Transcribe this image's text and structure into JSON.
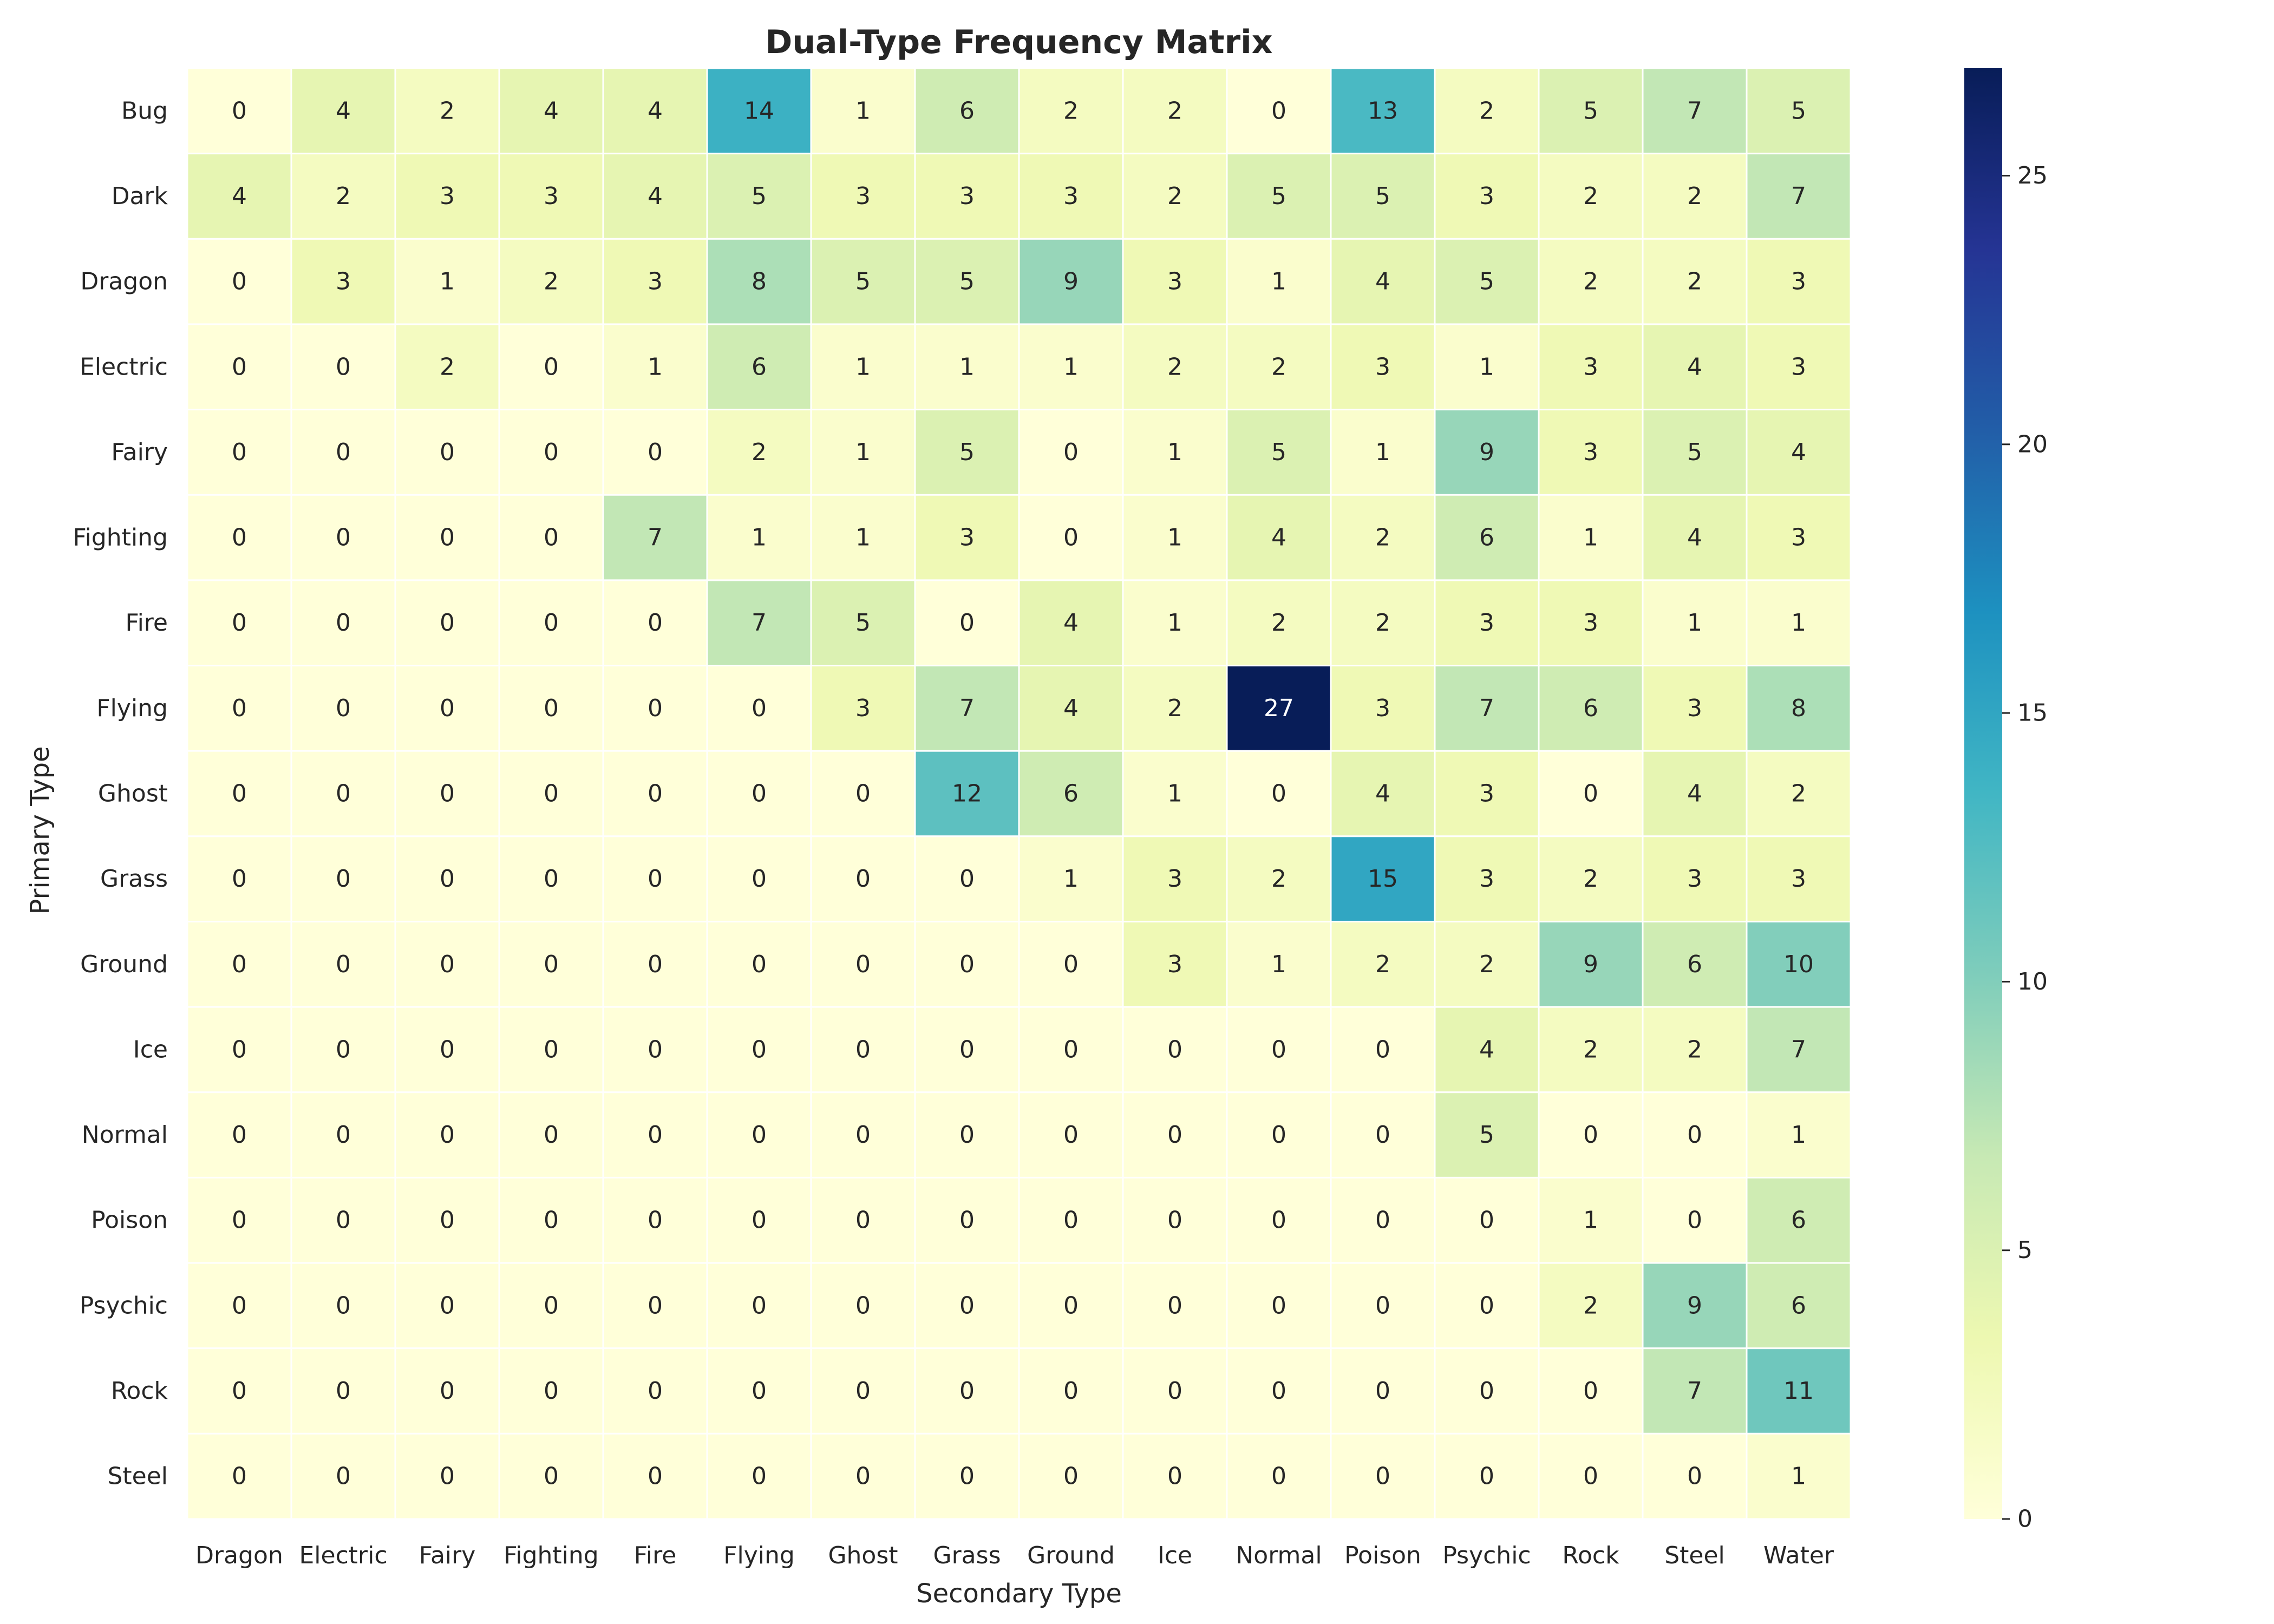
{
  "chart_data": {
    "type": "heatmap",
    "title": "Dual-Type Frequency Matrix",
    "xlabel": "Secondary Type",
    "ylabel": "Primary Type",
    "x_categories": [
      "Dragon",
      "Electric",
      "Fairy",
      "Fighting",
      "Fire",
      "Flying",
      "Ghost",
      "Grass",
      "Ground",
      "Ice",
      "Normal",
      "Poison",
      "Psychic",
      "Rock",
      "Steel",
      "Water"
    ],
    "y_categories": [
      "Bug",
      "Dark",
      "Dragon",
      "Electric",
      "Fairy",
      "Fighting",
      "Fire",
      "Flying",
      "Ghost",
      "Grass",
      "Ground",
      "Ice",
      "Normal",
      "Poison",
      "Psychic",
      "Rock",
      "Steel"
    ],
    "values": [
      [
        0,
        4,
        2,
        4,
        4,
        14,
        1,
        6,
        2,
        2,
        0,
        13,
        2,
        5,
        7,
        5
      ],
      [
        4,
        2,
        3,
        3,
        4,
        5,
        3,
        3,
        3,
        2,
        5,
        5,
        3,
        2,
        2,
        7
      ],
      [
        0,
        3,
        1,
        2,
        3,
        8,
        5,
        5,
        9,
        3,
        1,
        4,
        5,
        2,
        2,
        3
      ],
      [
        0,
        0,
        2,
        0,
        1,
        6,
        1,
        1,
        1,
        2,
        2,
        3,
        1,
        3,
        4,
        3
      ],
      [
        0,
        0,
        0,
        0,
        0,
        2,
        1,
        5,
        0,
        1,
        5,
        1,
        9,
        3,
        5,
        4
      ],
      [
        0,
        0,
        0,
        0,
        7,
        1,
        1,
        3,
        0,
        1,
        4,
        2,
        6,
        1,
        4,
        3
      ],
      [
        0,
        0,
        0,
        0,
        0,
        7,
        5,
        0,
        4,
        1,
        2,
        2,
        3,
        3,
        1,
        1
      ],
      [
        0,
        0,
        0,
        0,
        0,
        0,
        3,
        7,
        4,
        2,
        27,
        3,
        7,
        6,
        3,
        8
      ],
      [
        0,
        0,
        0,
        0,
        0,
        0,
        0,
        12,
        6,
        1,
        0,
        4,
        3,
        0,
        4,
        2
      ],
      [
        0,
        0,
        0,
        0,
        0,
        0,
        0,
        0,
        1,
        3,
        2,
        15,
        3,
        2,
        3,
        3
      ],
      [
        0,
        0,
        0,
        0,
        0,
        0,
        0,
        0,
        0,
        3,
        1,
        2,
        2,
        9,
        6,
        10
      ],
      [
        0,
        0,
        0,
        0,
        0,
        0,
        0,
        0,
        0,
        0,
        0,
        0,
        4,
        2,
        2,
        7
      ],
      [
        0,
        0,
        0,
        0,
        0,
        0,
        0,
        0,
        0,
        0,
        0,
        0,
        5,
        0,
        0,
        1
      ],
      [
        0,
        0,
        0,
        0,
        0,
        0,
        0,
        0,
        0,
        0,
        0,
        0,
        0,
        1,
        0,
        6
      ],
      [
        0,
        0,
        0,
        0,
        0,
        0,
        0,
        0,
        0,
        0,
        0,
        0,
        0,
        2,
        9,
        6
      ],
      [
        0,
        0,
        0,
        0,
        0,
        0,
        0,
        0,
        0,
        0,
        0,
        0,
        0,
        0,
        7,
        11
      ],
      [
        0,
        0,
        0,
        0,
        0,
        0,
        0,
        0,
        0,
        0,
        0,
        0,
        0,
        0,
        0,
        1
      ]
    ],
    "colorscale": "YlGnBu",
    "vmin": 0,
    "vmax": 27,
    "colorbar_ticks": [
      0,
      5,
      10,
      15,
      20,
      25
    ],
    "annotations": true
  }
}
